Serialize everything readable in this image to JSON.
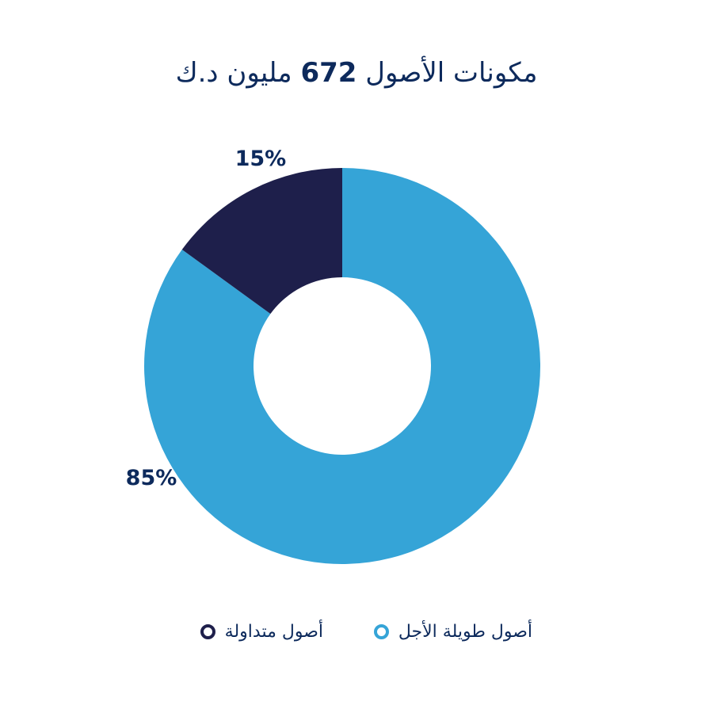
{
  "title": {
    "prefix": "مكونات الأصول",
    "value": "672",
    "suffix": "مليون د.ك"
  },
  "chart_data": {
    "type": "pie",
    "title": "مكونات الأصول 672 مليون د.ك",
    "categories": [
      "أصول طويلة الأجل",
      "أصول متداولة"
    ],
    "values": [
      85,
      15
    ],
    "labels": [
      "85%",
      "15%"
    ],
    "colors": [
      "#35a4d7",
      "#1e1f4b"
    ],
    "legend": "bottom"
  },
  "legend": {
    "items": [
      {
        "label": "أصول طويلة الأجل",
        "color": "#35a4d7"
      },
      {
        "label": "أصول متداولة",
        "color": "#1e1f4b"
      }
    ]
  }
}
